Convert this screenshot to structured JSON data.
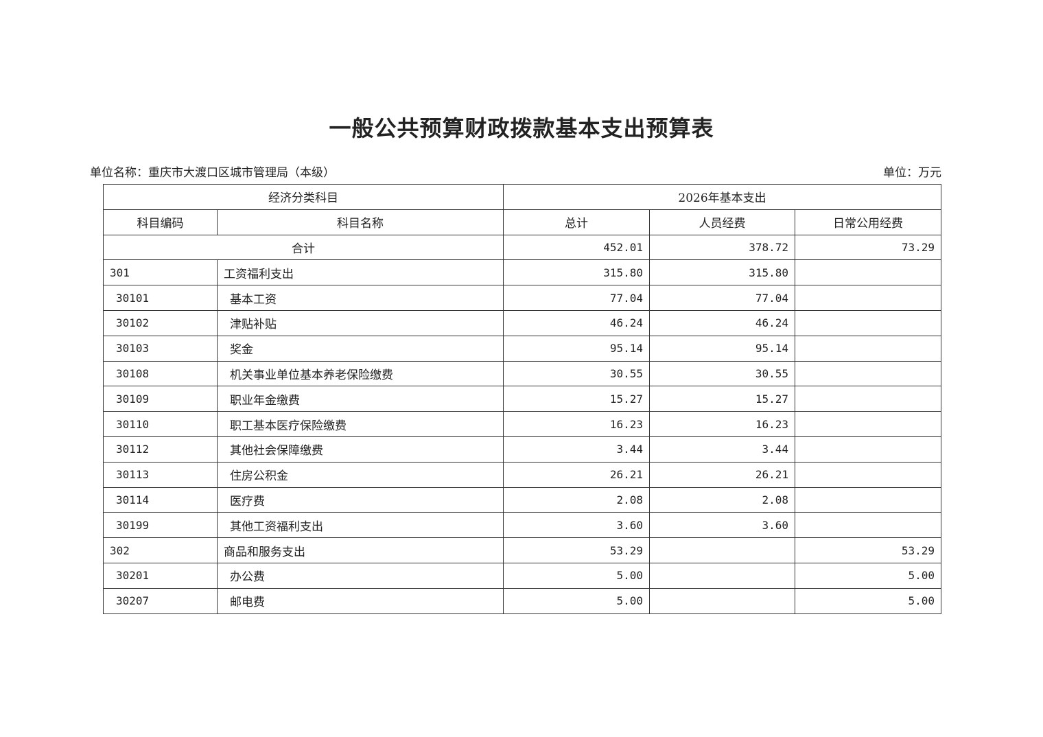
{
  "title": "一般公共预算财政拨款基本支出预算表",
  "unit_name": "单位名称：重庆市大渡口区城市管理局（本级）",
  "unit": "单位：万元",
  "header": {
    "group_left": "经济分类科目",
    "group_right": "2026年基本支出",
    "code": "科目编码",
    "name": "科目名称",
    "total": "总计",
    "personnel": "人员经费",
    "public": "日常公用经费"
  },
  "sum_row": {
    "label": "合计",
    "total": "452.01",
    "personnel": "378.72",
    "public": "73.29"
  },
  "rows": [
    {
      "code": "301",
      "name": "工资福利支出",
      "total": "315.80",
      "personnel": "315.80",
      "public": "",
      "level": 1
    },
    {
      "code": "30101",
      "name": "基本工资",
      "total": "77.04",
      "personnel": "77.04",
      "public": "",
      "level": 2
    },
    {
      "code": "30102",
      "name": "津贴补贴",
      "total": "46.24",
      "personnel": "46.24",
      "public": "",
      "level": 2
    },
    {
      "code": "30103",
      "name": "奖金",
      "total": "95.14",
      "personnel": "95.14",
      "public": "",
      "level": 2
    },
    {
      "code": "30108",
      "name": "机关事业单位基本养老保险缴费",
      "total": "30.55",
      "personnel": "30.55",
      "public": "",
      "level": 2
    },
    {
      "code": "30109",
      "name": "职业年金缴费",
      "total": "15.27",
      "personnel": "15.27",
      "public": "",
      "level": 2
    },
    {
      "code": "30110",
      "name": "职工基本医疗保险缴费",
      "total": "16.23",
      "personnel": "16.23",
      "public": "",
      "level": 2
    },
    {
      "code": "30112",
      "name": "其他社会保障缴费",
      "total": "3.44",
      "personnel": "3.44",
      "public": "",
      "level": 2
    },
    {
      "code": "30113",
      "name": "住房公积金",
      "total": "26.21",
      "personnel": "26.21",
      "public": "",
      "level": 2
    },
    {
      "code": "30114",
      "name": "医疗费",
      "total": "2.08",
      "personnel": "2.08",
      "public": "",
      "level": 2
    },
    {
      "code": "30199",
      "name": "其他工资福利支出",
      "total": "3.60",
      "personnel": "3.60",
      "public": "",
      "level": 2
    },
    {
      "code": "302",
      "name": "商品和服务支出",
      "total": "53.29",
      "personnel": "",
      "public": "53.29",
      "level": 1
    },
    {
      "code": "30201",
      "name": "办公费",
      "total": "5.00",
      "personnel": "",
      "public": "5.00",
      "level": 2
    },
    {
      "code": "30207",
      "name": "邮电费",
      "total": "5.00",
      "personnel": "",
      "public": "5.00",
      "level": 2
    }
  ]
}
